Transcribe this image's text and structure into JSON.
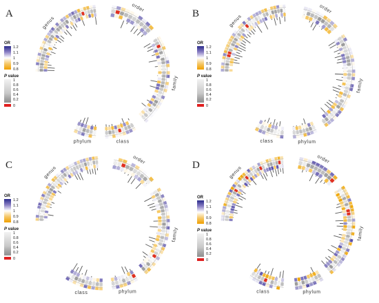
{
  "panels": [
    {
      "letter": "A",
      "groups": {
        "genus": "genus",
        "order": "order",
        "family": "family",
        "phylum": "phylum",
        "class": "class"
      },
      "legend": {
        "or_title": "OR",
        "or_ticks": [
          "1.2",
          "1.1",
          "1",
          "0.9",
          "0.8"
        ],
        "p_title_italic": "P",
        "p_title_rest": " value",
        "p_ticks": [
          "1",
          "0.8",
          "0.6",
          "0.4",
          "0.2",
          "0"
        ]
      },
      "arcs": [
        {
          "key": "genus",
          "start": 270,
          "end": 354,
          "n": 30
        },
        {
          "key": "order",
          "start": 8,
          "end": 50,
          "n": 10
        },
        {
          "key": "family",
          "start": 58,
          "end": 140,
          "n": 26
        },
        {
          "key": "class",
          "start": 150,
          "end": 178,
          "n": 9
        },
        {
          "key": "phylum",
          "start": 186,
          "end": 206,
          "n": 6
        }
      ],
      "ring_palette": "mixed"
    },
    {
      "letter": "B",
      "groups": {
        "genus": "genus",
        "order": "order",
        "family": "family",
        "phylum": "phylum",
        "class": "class"
      },
      "legend": {
        "or_title": "OR",
        "or_ticks": [
          "1.2",
          "1.1",
          "1",
          "0.9",
          "0.8"
        ],
        "p_title_italic": "P",
        "p_title_rest": " value",
        "p_ticks": [
          "1",
          "0.8",
          "0.6",
          "0.4",
          "0.2",
          "0"
        ]
      },
      "arcs": [
        {
          "key": "genus",
          "start": 270,
          "end": 358,
          "n": 32
        },
        {
          "key": "order",
          "start": 14,
          "end": 48,
          "n": 9
        },
        {
          "key": "family",
          "start": 56,
          "end": 146,
          "n": 28
        },
        {
          "key": "phylum",
          "start": 154,
          "end": 176,
          "n": 7
        },
        {
          "key": "class",
          "start": 184,
          "end": 210,
          "n": 8
        }
      ],
      "ring_palette": "mixed"
    },
    {
      "letter": "C",
      "groups": {
        "genus": "genus",
        "order": "order",
        "family": "family",
        "phylum": "phylum",
        "class": "class"
      },
      "legend": {
        "or_title": "OR",
        "or_ticks": [
          "1.2",
          "1.1",
          "1",
          "0.9",
          "0.8"
        ],
        "p_title_italic": "P",
        "p_title_rest": " value",
        "p_ticks": [
          "1",
          "0.8",
          "0.6",
          "0.4",
          "0.2",
          "0"
        ]
      },
      "arcs": [
        {
          "key": "genus",
          "start": 272,
          "end": 356,
          "n": 31
        },
        {
          "key": "order",
          "start": 10,
          "end": 50,
          "n": 10
        },
        {
          "key": "family",
          "start": 58,
          "end": 140,
          "n": 26
        },
        {
          "key": "phylum",
          "start": 148,
          "end": 172,
          "n": 7
        },
        {
          "key": "class",
          "start": 180,
          "end": 214,
          "n": 10
        }
      ],
      "ring_palette": "mixed"
    },
    {
      "letter": "D",
      "groups": {
        "genus": "genus",
        "order": "order",
        "family": "family",
        "phylum": "phylum",
        "class": "class"
      },
      "legend": {
        "or_title": "OR",
        "or_ticks": [
          "1.2",
          "1.1",
          "1",
          "0.9",
          "0.8"
        ],
        "p_title_italic": "P",
        "p_title_rest": " value",
        "p_ticks": [
          "1",
          "0.8",
          "0.6",
          "0.4",
          "0.2",
          "0"
        ]
      },
      "arcs": [
        {
          "key": "genus",
          "start": 272,
          "end": 356,
          "n": 32
        },
        {
          "key": "order",
          "start": 10,
          "end": 48,
          "n": 10
        },
        {
          "key": "family",
          "start": 56,
          "end": 140,
          "n": 28
        },
        {
          "key": "phylum",
          "start": 148,
          "end": 174,
          "n": 8
        },
        {
          "key": "class",
          "start": 184,
          "end": 216,
          "n": 10
        }
      ],
      "ring_palette": "strong"
    }
  ],
  "colors": {
    "or_high": "#3b3b98",
    "or_mid": "#ffffff",
    "or_low": "#f0a000",
    "p_high": "#e6e6e6",
    "p_mid": "#9a9a9a",
    "p_zero": "#e02020",
    "label_line": "#555555"
  }
}
